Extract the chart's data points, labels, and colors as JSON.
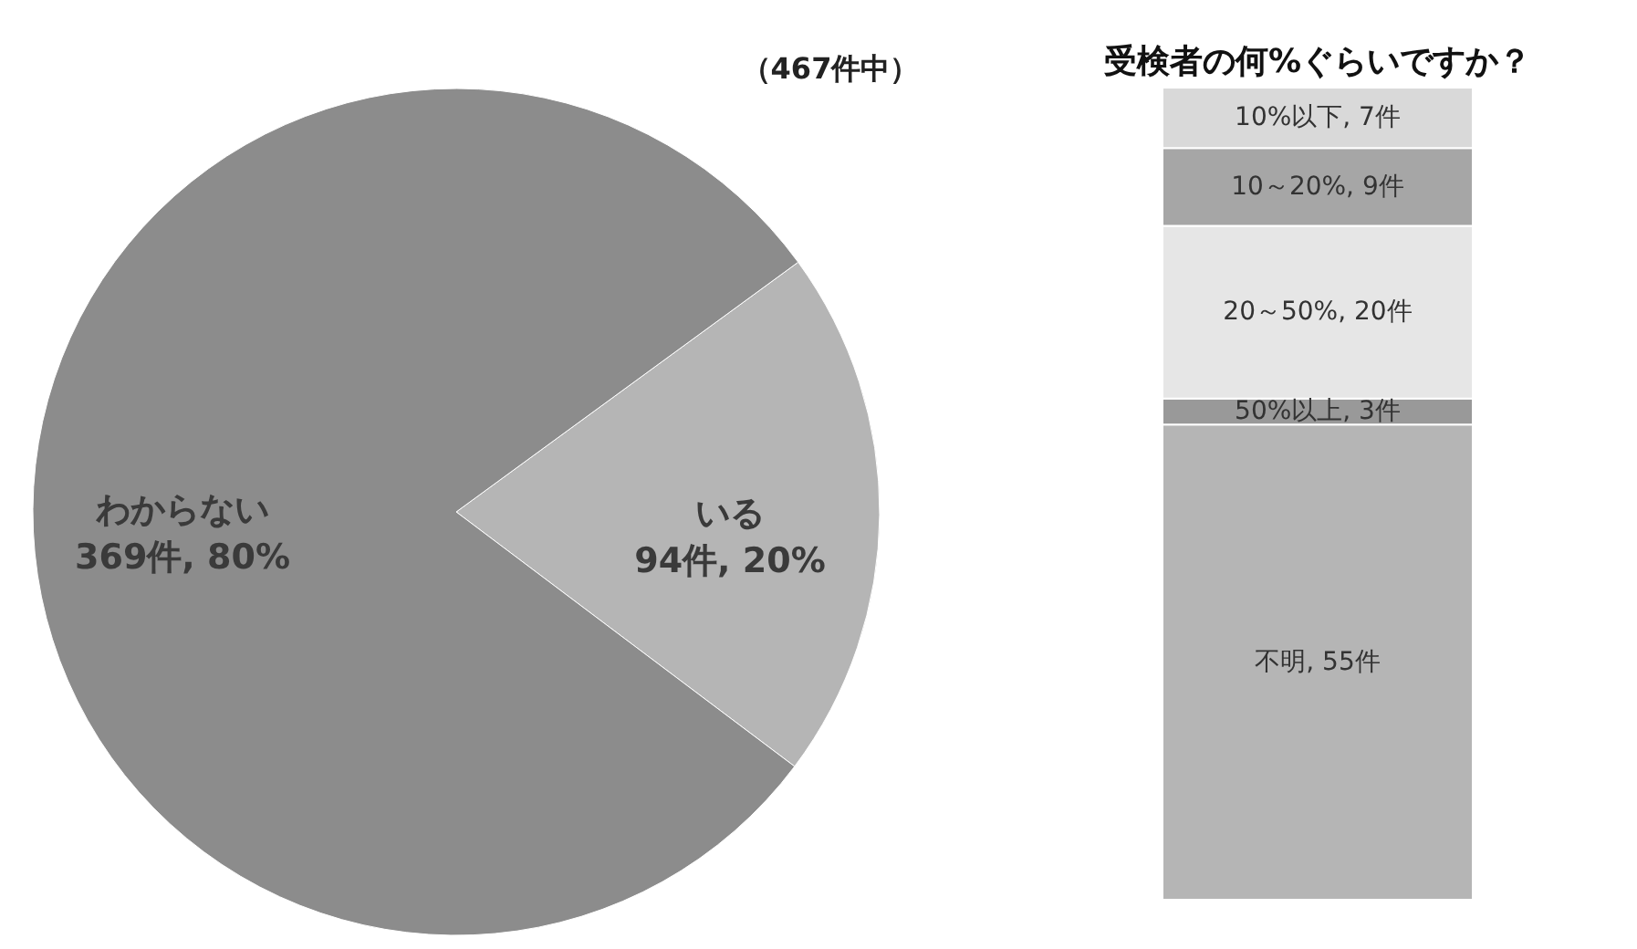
{
  "chart_data": [
    {
      "type": "pie",
      "annotations": [
        "（467件中）"
      ],
      "categories": [
        "いる",
        "わからない"
      ],
      "values": [
        94,
        369
      ],
      "colors": [
        "#b5b5b5",
        "#8c8c8c"
      ],
      "value_labels": [
        "94件, 20%",
        "369件, 80%"
      ],
      "legend": false
    },
    {
      "type": "bar",
      "title": "受検者の何%ぐらいですか？",
      "stacked": true,
      "categories": [
        null
      ],
      "legend": false,
      "series": [
        {
          "color": "#b5b5b5",
          "values": [
            55
          ],
          "value_labels": [
            "不明, 55件"
          ]
        },
        {
          "color": "#999999",
          "values": [
            3
          ],
          "value_labels": [
            "50%以上, 3件"
          ]
        },
        {
          "color": "#e6e6e6",
          "values": [
            20
          ],
          "value_labels": [
            "20～50%, 20件"
          ]
        },
        {
          "color": "#a6a6a6",
          "values": [
            9
          ],
          "value_labels": [
            "10～20%, 9件"
          ]
        },
        {
          "color": "#d9d9d9",
          "values": [
            7
          ],
          "value_labels": [
            "10%以下, 7件"
          ]
        }
      ]
    }
  ]
}
